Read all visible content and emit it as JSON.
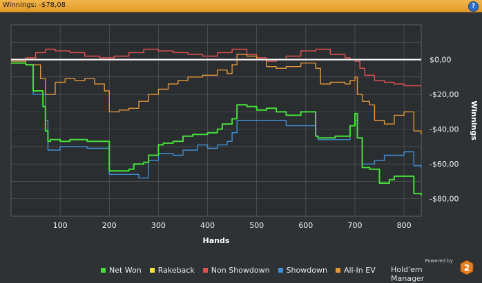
{
  "header": {
    "title": "Winnings: -$78,08",
    "help_icon": "question-mark-icon",
    "help_label": "?"
  },
  "colors": {
    "net_won": "#45e03a",
    "rakeback": "#f2e23c",
    "non_showdown": "#e0514f",
    "showdown": "#3f8fd6",
    "all_in_ev": "#e3953b",
    "zero_line": "#ffffff",
    "background": "#2f3235",
    "grid": "#5a5e62"
  },
  "branding": {
    "powered_by": "Powered by",
    "name": "Hold'em Manager",
    "logo_label": "2"
  },
  "chart_data": {
    "type": "line",
    "xlabel": "Hands",
    "ylabel": "Winnings",
    "xlim": [
      0,
      835
    ],
    "ylim": [
      -90,
      20
    ],
    "x_ticks": [
      100,
      200,
      300,
      400,
      500,
      600,
      700,
      800
    ],
    "x_tick_labels": [
      "100",
      "200",
      "300",
      "400",
      "500",
      "600",
      "700",
      "800"
    ],
    "y_ticks": [
      0,
      -20,
      -40,
      -60,
      -80
    ],
    "y_tick_labels": [
      "$0,00",
      "-$20,00",
      "-$40,00",
      "-$60,00",
      "-$80,00"
    ],
    "y_axis_position": "right",
    "grid": true,
    "legend_position": "bottom",
    "series": [
      {
        "name": "Net Won",
        "x": [
          0,
          30,
          35,
          45,
          50,
          60,
          65,
          70,
          75,
          80,
          100,
          120,
          150,
          155,
          200,
          210,
          240,
          250,
          270,
          280,
          300,
          310,
          330,
          350,
          370,
          400,
          420,
          430,
          440,
          450,
          460,
          480,
          500,
          520,
          540,
          560,
          590,
          620,
          625,
          660,
          680,
          690,
          700,
          705,
          715,
          730,
          750,
          760,
          770,
          780,
          800,
          820,
          835
        ],
        "values": [
          -2,
          -3,
          -3,
          -18,
          -18,
          -18,
          -27,
          -41,
          -47,
          -46,
          -47,
          -46,
          -46,
          -47,
          -64,
          -64,
          -63,
          -60,
          -59,
          -55,
          -49,
          -48,
          -47,
          -44,
          -43,
          -42,
          -40,
          -37,
          -37,
          -34,
          -26,
          -27,
          -29,
          -28,
          -30,
          -32,
          -30,
          -44,
          -45,
          -44,
          -44,
          -38,
          -31,
          -45,
          -62,
          -63,
          -71,
          -71,
          -69,
          -67,
          -67,
          -77,
          -78
        ]
      },
      {
        "name": "Rakeback",
        "x": [
          0,
          835
        ],
        "values": [
          0,
          0
        ]
      },
      {
        "name": "Non Showdown",
        "x": [
          0,
          30,
          50,
          70,
          90,
          120,
          150,
          180,
          210,
          240,
          270,
          300,
          330,
          360,
          390,
          420,
          450,
          480,
          500,
          520,
          540,
          560,
          590,
          620,
          650,
          680,
          690,
          700,
          710,
          720,
          740,
          760,
          780,
          800,
          820,
          835
        ],
        "values": [
          0,
          1,
          4,
          6,
          5,
          4,
          2,
          1,
          2,
          4,
          6,
          5,
          4,
          3,
          2,
          4,
          6,
          3,
          1,
          -1,
          0,
          2,
          5,
          6,
          3,
          1,
          0,
          -1,
          -5,
          -9,
          -12,
          -13,
          -14,
          -15,
          -15,
          -15
        ]
      },
      {
        "name": "Showdown",
        "x": [
          0,
          30,
          35,
          45,
          60,
          70,
          75,
          100,
          120,
          150,
          155,
          200,
          240,
          260,
          280,
          300,
          330,
          350,
          380,
          400,
          420,
          440,
          450,
          460,
          500,
          540,
          560,
          590,
          620,
          625,
          660,
          690,
          700,
          705,
          715,
          730,
          740,
          750,
          760,
          780,
          800,
          820,
          835
        ],
        "values": [
          -2,
          -3,
          -3,
          -20,
          -20,
          -35,
          -52,
          -50,
          -50,
          -50,
          -51,
          -66,
          -66,
          -68,
          -58,
          -54,
          -55,
          -52,
          -49,
          -51,
          -49,
          -47,
          -42,
          -35,
          -35,
          -35,
          -38,
          -38,
          -44,
          -46,
          -46,
          -38,
          -35,
          -45,
          -60,
          -60,
          -58,
          -58,
          -55,
          -55,
          -53,
          -61,
          -62
        ]
      },
      {
        "name": "All-In EV",
        "x": [
          0,
          30,
          50,
          60,
          70,
          90,
          110,
          130,
          150,
          170,
          190,
          200,
          220,
          240,
          260,
          280,
          300,
          320,
          340,
          360,
          390,
          420,
          440,
          450,
          460,
          480,
          500,
          520,
          540,
          560,
          590,
          620,
          630,
          650,
          680,
          690,
          700,
          705,
          715,
          730,
          740,
          760,
          780,
          800,
          820,
          835
        ],
        "values": [
          -1,
          -3,
          -3,
          -11,
          -20,
          -13,
          -11,
          -12,
          -11,
          -14,
          -18,
          -30,
          -29,
          -28,
          -24,
          -20,
          -17,
          -14,
          -12,
          -10,
          -9,
          -6,
          -8,
          -3,
          3,
          2,
          0,
          -4,
          -5,
          -4,
          -2,
          -5,
          -14,
          -13,
          -14,
          -12,
          -10,
          -20,
          -24,
          -26,
          -35,
          -37,
          -32,
          -30,
          -41,
          -43
        ]
      }
    ]
  }
}
